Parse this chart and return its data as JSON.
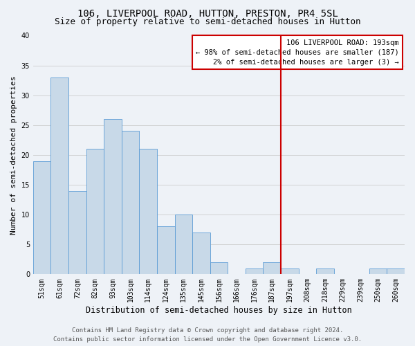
{
  "title": "106, LIVERPOOL ROAD, HUTTON, PRESTON, PR4 5SL",
  "subtitle": "Size of property relative to semi-detached houses in Hutton",
  "xlabel": "Distribution of semi-detached houses by size in Hutton",
  "ylabel": "Number of semi-detached properties",
  "bar_labels": [
    "51sqm",
    "61sqm",
    "72sqm",
    "82sqm",
    "93sqm",
    "103sqm",
    "114sqm",
    "124sqm",
    "135sqm",
    "145sqm",
    "156sqm",
    "166sqm",
    "176sqm",
    "187sqm",
    "197sqm",
    "208sqm",
    "218sqm",
    "229sqm",
    "239sqm",
    "250sqm",
    "260sqm"
  ],
  "bar_values": [
    19,
    33,
    14,
    21,
    26,
    24,
    21,
    8,
    10,
    7,
    2,
    0,
    1,
    2,
    1,
    0,
    1,
    0,
    0,
    1,
    1
  ],
  "bar_color": "#c8d9e8",
  "bar_edge_color": "#5b9bd5",
  "background_color": "#eef2f7",
  "grid_color": "#cccccc",
  "ylim": [
    0,
    40
  ],
  "yticks": [
    0,
    5,
    10,
    15,
    20,
    25,
    30,
    35,
    40
  ],
  "vline_index": 13.5,
  "vline_color": "#cc0000",
  "annotation_title": "106 LIVERPOOL ROAD: 193sqm",
  "annotation_line1": "← 98% of semi-detached houses are smaller (187)",
  "annotation_line2": "2% of semi-detached houses are larger (3) →",
  "annotation_box_color": "#cc0000",
  "annotation_box_bg": "#ffffff",
  "footer_line1": "Contains HM Land Registry data © Crown copyright and database right 2024.",
  "footer_line2": "Contains public sector information licensed under the Open Government Licence v3.0.",
  "title_fontsize": 10,
  "subtitle_fontsize": 9,
  "xlabel_fontsize": 8.5,
  "ylabel_fontsize": 8,
  "tick_fontsize": 7,
  "annotation_fontsize": 7.5,
  "footer_fontsize": 6.5
}
